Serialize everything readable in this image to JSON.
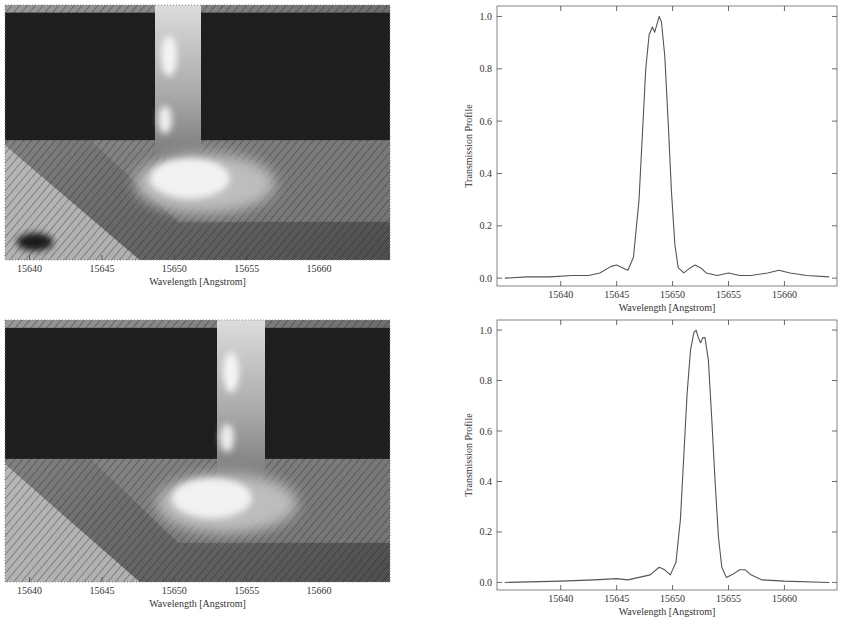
{
  "chart_data": [
    {
      "type": "image",
      "x_label": "Wavelength [Angstrom]",
      "xlim": [
        15638.3,
        15664.9
      ],
      "xticks": [
        15640,
        15645,
        15650,
        15655,
        15660
      ],
      "tick_labels": "x",
      "grid": false
    },
    {
      "type": "line",
      "x_label": "Wavelength [Angstrom]",
      "y_label": "Transmission Profile",
      "xlim": [
        15634.3,
        15664.7
      ],
      "ylim": [
        -0.03,
        1.04
      ],
      "xticks": [
        15640,
        15645,
        15650,
        15655,
        15660
      ],
      "yticks": [
        {
          "value": 0,
          "label": "0.0"
        },
        {
          "value": 0.2,
          "label": "0.2"
        },
        {
          "value": 0.4,
          "label": "0.4"
        },
        {
          "value": 0.6,
          "label": "0.6"
        },
        {
          "value": 0.8,
          "label": "0.8"
        },
        {
          "value": 1,
          "label": "1.0"
        }
      ],
      "grid": false,
      "color": "#555555",
      "x": [
        15635,
        15637,
        15639,
        15641,
        15642.5,
        15643.5,
        15644.5,
        15645,
        15645.5,
        15646,
        15646.5,
        15647,
        15647.3,
        15647.6,
        15647.9,
        15648.2,
        15648.4,
        15648.6,
        15648.8,
        15649,
        15649.3,
        15649.6,
        15649.9,
        15650.2,
        15650.5,
        15651,
        15651.6,
        15652,
        15652.5,
        15653,
        15654,
        15655,
        15656,
        15657,
        15658.5,
        15659.5,
        15660.5,
        15662,
        15664
      ],
      "values": [
        0.0,
        0.005,
        0.005,
        0.01,
        0.01,
        0.02,
        0.045,
        0.05,
        0.04,
        0.03,
        0.08,
        0.3,
        0.55,
        0.8,
        0.93,
        0.96,
        0.94,
        0.97,
        1.0,
        0.98,
        0.85,
        0.6,
        0.33,
        0.13,
        0.04,
        0.02,
        0.04,
        0.05,
        0.04,
        0.02,
        0.01,
        0.02,
        0.01,
        0.01,
        0.02,
        0.03,
        0.02,
        0.01,
        0.005
      ]
    },
    {
      "type": "image",
      "x_label": "Wavelength [Angstrom]",
      "xlim": [
        15638.3,
        15664.9
      ],
      "xticks": [
        15640,
        15645,
        15650,
        15655,
        15660
      ],
      "tick_labels": "x",
      "grid": false
    },
    {
      "type": "line",
      "x_label": "Wavelength [Angstrom]",
      "y_label": "Transmission Profile",
      "xlim": [
        15634.3,
        15664.7
      ],
      "ylim": [
        -0.03,
        1.04
      ],
      "xticks": [
        15640,
        15645,
        15650,
        15655,
        15660
      ],
      "yticks": [
        {
          "value": 0,
          "label": "0.0"
        },
        {
          "value": 0.2,
          "label": "0.2"
        },
        {
          "value": 0.4,
          "label": "0.4"
        },
        {
          "value": 0.6,
          "label": "0.6"
        },
        {
          "value": 0.8,
          "label": "0.8"
        },
        {
          "value": 1,
          "label": "1.0"
        }
      ],
      "grid": false,
      "color": "#555555",
      "x": [
        15635,
        15640,
        15643,
        15645,
        15646,
        15647,
        15648,
        15648.8,
        15649.3,
        15649.8,
        15650.3,
        15650.7,
        15651,
        15651.3,
        15651.6,
        15651.9,
        15652.1,
        15652.3,
        15652.5,
        15652.7,
        15652.9,
        15653.2,
        15653.5,
        15653.8,
        15654.1,
        15654.4,
        15654.8,
        15655.3,
        15656,
        15656.5,
        15657,
        15658,
        15660,
        15664
      ],
      "values": [
        0.0,
        0.005,
        0.01,
        0.015,
        0.01,
        0.02,
        0.03,
        0.06,
        0.05,
        0.03,
        0.08,
        0.25,
        0.5,
        0.75,
        0.92,
        0.99,
        1.0,
        0.97,
        0.95,
        0.97,
        0.97,
        0.88,
        0.65,
        0.4,
        0.18,
        0.06,
        0.02,
        0.03,
        0.05,
        0.05,
        0.03,
        0.01,
        0.005,
        0.0
      ]
    }
  ]
}
